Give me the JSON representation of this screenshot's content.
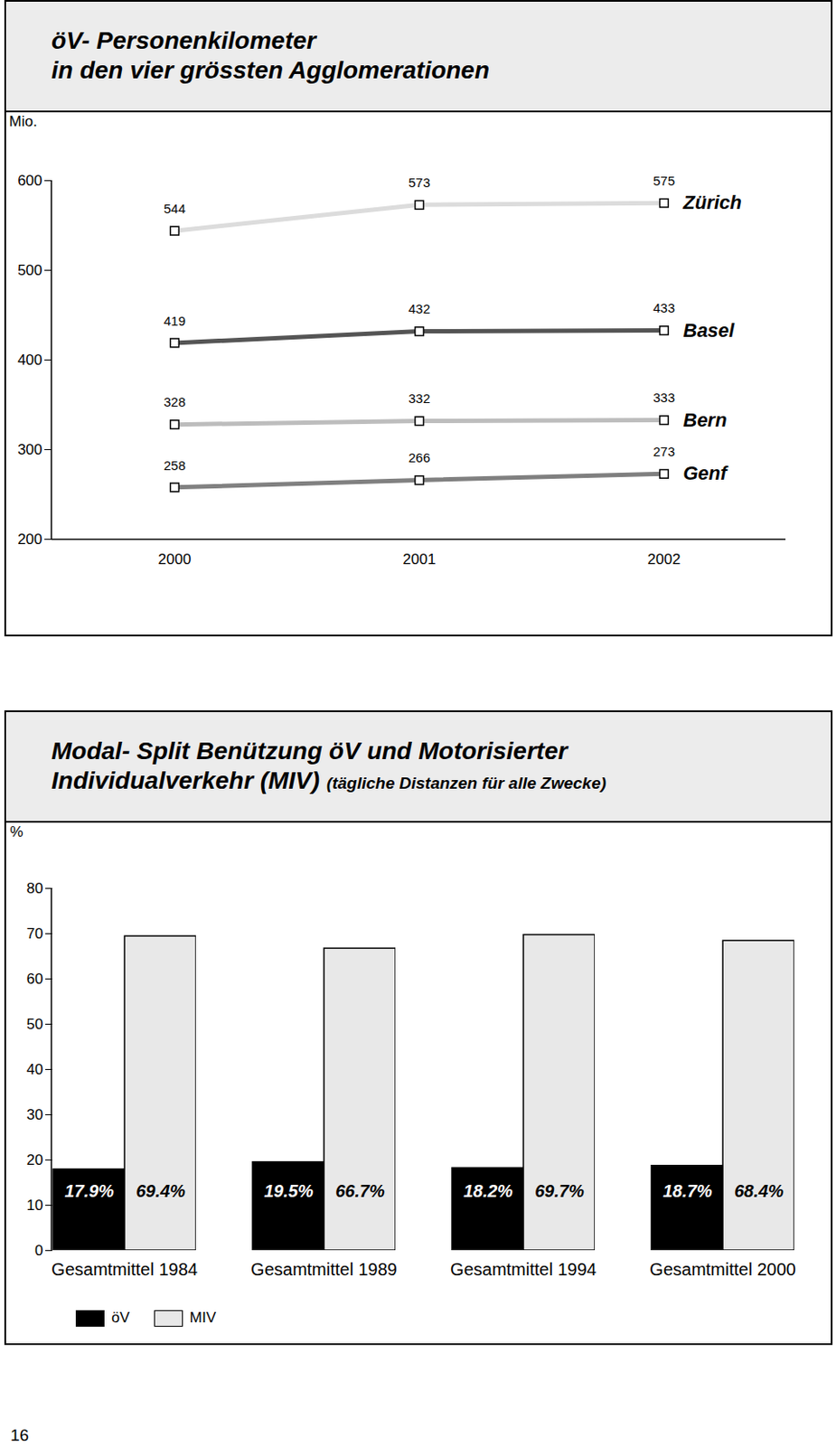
{
  "chart_data": [
    {
      "type": "line",
      "title": "öV- Personenkilometer\nin den vier grössten Agglomerationen",
      "y_label": "Mio.",
      "categories": [
        "2000",
        "2001",
        "2002"
      ],
      "series": [
        {
          "name": "Zürich",
          "color": "#dcdcdc",
          "values": [
            544,
            573,
            575
          ]
        },
        {
          "name": "Basel",
          "color": "#555555",
          "values": [
            419,
            432,
            433
          ]
        },
        {
          "name": "Bern",
          "color": "#bdbdbd",
          "values": [
            328,
            332,
            333
          ]
        },
        {
          "name": "Genf",
          "color": "#808080",
          "values": [
            258,
            266,
            273
          ]
        }
      ],
      "ylim": [
        200,
        600
      ],
      "yticks": [
        200,
        300,
        400,
        500,
        600
      ],
      "data_labels": true,
      "marker": "square"
    },
    {
      "type": "bar",
      "title": "Modal- Split Benützung öV und Motorisierter\nIndividualverkehr (MIV)",
      "subtitle": "(tägliche Distanzen für alle Zwecke)",
      "y_label": "%",
      "categories": [
        "Gesamtmittel 1984",
        "Gesamtmittel 1989",
        "Gesamtmittel 1994",
        "Gesamtmittel 2000"
      ],
      "series": [
        {
          "name": "öV",
          "color": "#000000",
          "values": [
            17.9,
            19.5,
            18.2,
            18.7
          ],
          "value_labels": [
            "17.9%",
            "19.5%",
            "18.2%",
            "18.7%"
          ]
        },
        {
          "name": "MIV",
          "color": "#e8e8e8",
          "values": [
            69.4,
            66.7,
            69.7,
            68.4
          ],
          "value_labels": [
            "69.4%",
            "66.7%",
            "69.7%",
            "68.4%"
          ]
        }
      ],
      "ylim": [
        0,
        80
      ],
      "yticks": [
        0,
        10,
        20,
        30,
        40,
        50,
        60,
        70,
        80
      ],
      "data_labels": true,
      "legend": "bottom-left"
    }
  ],
  "page_number": 16
}
